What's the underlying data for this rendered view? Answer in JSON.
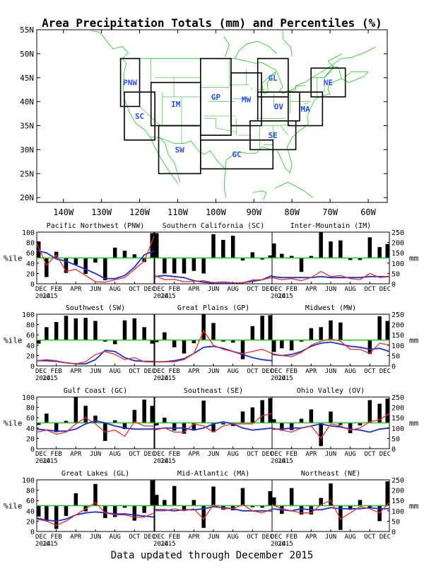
{
  "page": {
    "title": "Area Precipitation Totals (mm) and Percentiles (%)",
    "footer": "Data updated through December 2015"
  },
  "map": {
    "lat_labels": [
      "55N",
      "50N",
      "45N",
      "40N",
      "35N",
      "30N",
      "25N",
      "20N"
    ],
    "lon_labels": [
      "140W",
      "130W",
      "120W",
      "110W",
      "100W",
      "90W",
      "80W",
      "70W",
      "60W"
    ],
    "colors": {
      "boundaries": "#22c422",
      "boxes": "#000000",
      "region_labels": "#2a50e8"
    },
    "regions": [
      {
        "code": "PNW",
        "lon": [
          -125,
          -120
        ],
        "lat": [
          39,
          49
        ]
      },
      {
        "code": "SC",
        "lon": [
          -124,
          -116
        ],
        "lat": [
          32,
          42
        ]
      },
      {
        "code": "IM",
        "lon": [
          -117,
          -104
        ],
        "lat": [
          35,
          44
        ]
      },
      {
        "code": "SW",
        "lon": [
          -115,
          -104
        ],
        "lat": [
          25,
          35
        ]
      },
      {
        "code": "GP",
        "lon": [
          -104,
          -96
        ],
        "lat": [
          33,
          49
        ]
      },
      {
        "code": "MW",
        "lon": [
          -96,
          -88
        ],
        "lat": [
          35,
          46
        ]
      },
      {
        "code": "GL",
        "lon": [
          -89,
          -81
        ],
        "lat": [
          41,
          49
        ]
      },
      {
        "code": "OV",
        "lon": [
          -89,
          -78
        ],
        "lat": [
          36,
          42
        ]
      },
      {
        "code": "SE",
        "lon": [
          -91,
          -79
        ],
        "lat": [
          30,
          36
        ]
      },
      {
        "code": "GC",
        "lon": [
          -104,
          -85
        ],
        "lat": [
          26,
          32
        ]
      },
      {
        "code": "MA",
        "lon": [
          -81,
          -72
        ],
        "lat": [
          35,
          42
        ]
      },
      {
        "code": "NE",
        "lon": [
          -75,
          -66
        ],
        "lat": [
          41,
          47
        ]
      }
    ]
  },
  "chart_common": {
    "x_tick_labels": [
      "DEC",
      "FEB",
      "APR",
      "JUN",
      "AUG",
      "OCT",
      "DEC"
    ],
    "year_labels": [
      "2014",
      "2015"
    ],
    "pct_ticks": [
      "0",
      "20",
      "40",
      "60",
      "80",
      "100"
    ],
    "mm_ticks": [
      "0",
      "50",
      "100",
      "150",
      "200",
      "250"
    ],
    "ylabel_left": "%ile",
    "ylabel_right": "mm",
    "colors": {
      "bars": "#000000",
      "median_line": "#22c422",
      "observed_line": "#e83030",
      "normal_line": "#2030d0"
    }
  },
  "chart_data": [
    {
      "type": "bar",
      "title": "Pacific Northwest (PNW)",
      "months": [
        "Dec 2014",
        "Jan 2015",
        "Feb 2015",
        "Mar 2015",
        "Apr 2015",
        "May 2015",
        "Jun 2015",
        "Jul 2015",
        "Aug 2015",
        "Sep 2015",
        "Oct 2015",
        "Nov 2015",
        "Dec 2015"
      ],
      "percentile": [
        82,
        13,
        62,
        21,
        37,
        19,
        41,
        7,
        70,
        64,
        57,
        42,
        98
      ],
      "observed_mm": [
        195,
        90,
        140,
        60,
        70,
        40,
        10,
        8,
        20,
        30,
        70,
        110,
        230
      ],
      "normal_mm": [
        160,
        150,
        120,
        110,
        90,
        70,
        50,
        25,
        25,
        40,
        80,
        140,
        160
      ],
      "ylim": [
        0,
        100
      ],
      "y2lim": [
        0,
        250
      ],
      "median": 50
    },
    {
      "type": "bar",
      "title": "Southern California (SC)",
      "months": [
        "Dec 2014",
        "Jan 2015",
        "Feb 2015",
        "Mar 2015",
        "Apr 2015",
        "May 2015",
        "Jun 2015",
        "Jul 2015",
        "Aug 2015",
        "Sep 2015",
        "Oct 2015",
        "Nov 2015",
        "Dec 2015"
      ],
      "percentile": [
        98,
        20,
        20,
        20,
        25,
        20,
        96,
        85,
        93,
        45,
        61,
        47,
        55
      ],
      "observed_mm": [
        40,
        20,
        22,
        10,
        12,
        15,
        5,
        10,
        5,
        4,
        18,
        20,
        30
      ],
      "normal_mm": [
        35,
        40,
        35,
        30,
        15,
        8,
        3,
        3,
        3,
        5,
        12,
        20,
        40
      ],
      "ylim": [
        0,
        100
      ],
      "y2lim": [
        0,
        250
      ],
      "median": 50
    },
    {
      "type": "bar",
      "title": "Inter-Mountain (IM)",
      "months": [
        "Dec 2014",
        "Jan 2015",
        "Feb 2015",
        "Mar 2015",
        "Apr 2015",
        "May 2015",
        "Jun 2015",
        "Jul 2015",
        "Aug 2015",
        "Sep 2015",
        "Oct 2015",
        "Nov 2015",
        "Dec 2015"
      ],
      "percentile": [
        78,
        58,
        54,
        23,
        54,
        100,
        82,
        84,
        46,
        46,
        90,
        71,
        77
      ],
      "observed_mm": [
        30,
        20,
        25,
        15,
        30,
        60,
        35,
        40,
        25,
        20,
        50,
        30,
        35
      ],
      "normal_mm": [
        35,
        30,
        30,
        30,
        30,
        35,
        30,
        30,
        30,
        30,
        35,
        35,
        35
      ],
      "ylim": [
        0,
        100
      ],
      "y2lim": [
        0,
        250
      ],
      "median": 50
    },
    {
      "type": "bar",
      "title": "Southwest (SW)",
      "months": [
        "Dec 2014",
        "Jan 2015",
        "Feb 2015",
        "Mar 2015",
        "Apr 2015",
        "May 2015",
        "Jun 2015",
        "Jul 2015",
        "Aug 2015",
        "Sep 2015",
        "Oct 2015",
        "Nov 2015",
        "Dec 2015"
      ],
      "percentile": [
        43,
        75,
        85,
        97,
        92,
        93,
        87,
        47,
        42,
        88,
        92,
        75,
        43
      ],
      "observed_mm": [
        25,
        30,
        25,
        15,
        10,
        20,
        55,
        70,
        55,
        30,
        40,
        20,
        18
      ],
      "normal_mm": [
        25,
        25,
        22,
        15,
        10,
        10,
        30,
        75,
        70,
        40,
        25,
        22,
        22
      ],
      "ylim": [
        0,
        100
      ],
      "y2lim": [
        0,
        250
      ],
      "median": 50
    },
    {
      "type": "bar",
      "title": "Great Plains (GP)",
      "months": [
        "Dec 2014",
        "Jan 2015",
        "Feb 2015",
        "Mar 2015",
        "Apr 2015",
        "May 2015",
        "Jun 2015",
        "Jul 2015",
        "Aug 2015",
        "Sep 2015",
        "Oct 2015",
        "Nov 2015",
        "Dec 2015"
      ],
      "percentile": [
        46,
        65,
        36,
        24,
        44,
        100,
        83,
        47,
        45,
        13,
        77,
        97,
        98
      ],
      "observed_mm": [
        20,
        20,
        20,
        30,
        60,
        170,
        100,
        80,
        70,
        60,
        70,
        80,
        60
      ],
      "normal_mm": [
        20,
        20,
        25,
        35,
        60,
        90,
        95,
        85,
        70,
        55,
        40,
        30,
        25
      ],
      "ylim": [
        0,
        100
      ],
      "y2lim": [
        0,
        250
      ],
      "median": 50
    },
    {
      "type": "bar",
      "title": "Midwest (MW)",
      "months": [
        "Dec 2014",
        "Jan 2015",
        "Feb 2015",
        "Mar 2015",
        "Apr 2015",
        "May 2015",
        "Jun 2015",
        "Jul 2015",
        "Aug 2015",
        "Sep 2015",
        "Oct 2015",
        "Nov 2015",
        "Dec 2015"
      ],
      "percentile": [
        27,
        34,
        30,
        47,
        73,
        75,
        88,
        84,
        49,
        50,
        23,
        96,
        87
      ],
      "observed_mm": [
        60,
        50,
        45,
        65,
        100,
        120,
        130,
        120,
        80,
        80,
        60,
        110,
        100
      ],
      "normal_mm": [
        55,
        50,
        55,
        70,
        95,
        110,
        115,
        105,
        95,
        90,
        80,
        85,
        70
      ],
      "ylim": [
        0,
        100
      ],
      "y2lim": [
        0,
        250
      ],
      "median": 50
    },
    {
      "type": "bar",
      "title": "Gulf Coast (GC)",
      "months": [
        "Dec 2014",
        "Jan 2015",
        "Feb 2015",
        "Mar 2015",
        "Apr 2015",
        "May 2015",
        "Jun 2015",
        "Jul 2015",
        "Aug 2015",
        "Sep 2015",
        "Oct 2015",
        "Nov 2015",
        "Dec 2015"
      ],
      "percentile": [
        46,
        68,
        32,
        54,
        100,
        83,
        64,
        15,
        55,
        38,
        75,
        95,
        83
      ],
      "observed_mm": [
        80,
        90,
        70,
        80,
        120,
        150,
        120,
        80,
        90,
        60,
        130,
        110,
        110
      ],
      "normal_mm": [
        95,
        90,
        85,
        85,
        95,
        120,
        135,
        125,
        110,
        100,
        95,
        95,
        95
      ],
      "ylim": [
        0,
        100
      ],
      "y2lim": [
        0,
        250
      ],
      "median": 50
    },
    {
      "type": "bar",
      "title": "Southeast (SE)",
      "months": [
        "Dec 2014",
        "Jan 2015",
        "Feb 2015",
        "Mar 2015",
        "Apr 2015",
        "May 2015",
        "Jun 2015",
        "Jul 2015",
        "Aug 2015",
        "Sep 2015",
        "Oct 2015",
        "Nov 2015",
        "Dec 2015"
      ],
      "percentile": [
        45,
        60,
        35,
        29,
        35,
        93,
        32,
        47,
        44,
        72,
        80,
        94,
        98
      ],
      "observed_mm": [
        90,
        100,
        80,
        80,
        120,
        110,
        80,
        110,
        120,
        120,
        120,
        160,
        170
      ],
      "normal_mm": [
        95,
        100,
        100,
        100,
        90,
        100,
        120,
        130,
        120,
        100,
        90,
        95,
        100
      ],
      "ylim": [
        0,
        100
      ],
      "y2lim": [
        0,
        250
      ],
      "median": 50
    },
    {
      "type": "bar",
      "title": "Ohio Valley (OV)",
      "months": [
        "Dec 2014",
        "Jan 2015",
        "Feb 2015",
        "Mar 2015",
        "Apr 2015",
        "May 2015",
        "Jun 2015",
        "Jul 2015",
        "Aug 2015",
        "Sep 2015",
        "Oct 2015",
        "Nov 2015",
        "Dec 2015"
      ],
      "percentile": [
        57,
        35,
        36,
        58,
        76,
        5,
        72,
        46,
        30,
        45,
        94,
        87,
        97
      ],
      "observed_mm": [
        100,
        90,
        80,
        100,
        110,
        50,
        120,
        110,
        90,
        100,
        130,
        140,
        170
      ],
      "normal_mm": [
        95,
        95,
        100,
        100,
        110,
        120,
        110,
        105,
        95,
        90,
        80,
        95,
        100
      ],
      "ylim": [
        0,
        100
      ],
      "y2lim": [
        0,
        250
      ],
      "median": 50
    },
    {
      "type": "bar",
      "title": "Great Lakes (GL)",
      "months": [
        "Dec 2014",
        "Jan 2015",
        "Feb 2015",
        "Mar 2015",
        "Apr 2015",
        "May 2015",
        "Jun 2015",
        "Jul 2015",
        "Aug 2015",
        "Sep 2015",
        "Oct 2015",
        "Nov 2015",
        "Dec 2015"
      ],
      "percentile": [
        29,
        20,
        5,
        30,
        74,
        39,
        92,
        26,
        28,
        46,
        21,
        36,
        99
      ],
      "observed_mm": [
        60,
        50,
        30,
        50,
        80,
        110,
        140,
        90,
        80,
        80,
        70,
        70,
        90
      ],
      "normal_mm": [
        65,
        55,
        50,
        60,
        80,
        90,
        95,
        90,
        85,
        85,
        80,
        75,
        70
      ],
      "ylim": [
        0,
        100
      ],
      "y2lim": [
        0,
        250
      ],
      "median": 50
    },
    {
      "type": "bar",
      "title": "Mid-Atlantic (MA)",
      "months": [
        "Dec 2014",
        "Jan 2015",
        "Feb 2015",
        "Mar 2015",
        "Apr 2015",
        "May 2015",
        "Jun 2015",
        "Jul 2015",
        "Aug 2015",
        "Sep 2015",
        "Oct 2015",
        "Nov 2015",
        "Dec 2015"
      ],
      "percentile": [
        71,
        61,
        88,
        43,
        61,
        7,
        87,
        42,
        41,
        84,
        47,
        46,
        78
      ],
      "observed_mm": [
        100,
        100,
        110,
        100,
        110,
        60,
        130,
        110,
        110,
        130,
        100,
        90,
        110
      ],
      "normal_mm": [
        105,
        105,
        100,
        105,
        105,
        110,
        120,
        115,
        110,
        100,
        100,
        100,
        100
      ],
      "ylim": [
        0,
        100
      ],
      "y2lim": [
        0,
        250
      ],
      "median": 50
    },
    {
      "type": "bar",
      "title": "Northeast (NE)",
      "months": [
        "Dec 2014",
        "Jan 2015",
        "Feb 2015",
        "Mar 2015",
        "Apr 2015",
        "May 2015",
        "Jun 2015",
        "Jul 2015",
        "Aug 2015",
        "Sep 2015",
        "Oct 2015",
        "Nov 2015",
        "Dec 2015"
      ],
      "percentile": [
        66,
        34,
        84,
        33,
        33,
        65,
        93,
        3,
        42,
        61,
        46,
        20,
        97
      ],
      "observed_mm": [
        130,
        110,
        100,
        90,
        90,
        130,
        150,
        60,
        90,
        120,
        110,
        90,
        140
      ],
      "normal_mm": [
        110,
        105,
        100,
        110,
        105,
        105,
        115,
        110,
        110,
        110,
        115,
        110,
        110
      ],
      "ylim": [
        0,
        100
      ],
      "y2lim": [
        0,
        250
      ],
      "median": 50
    }
  ]
}
